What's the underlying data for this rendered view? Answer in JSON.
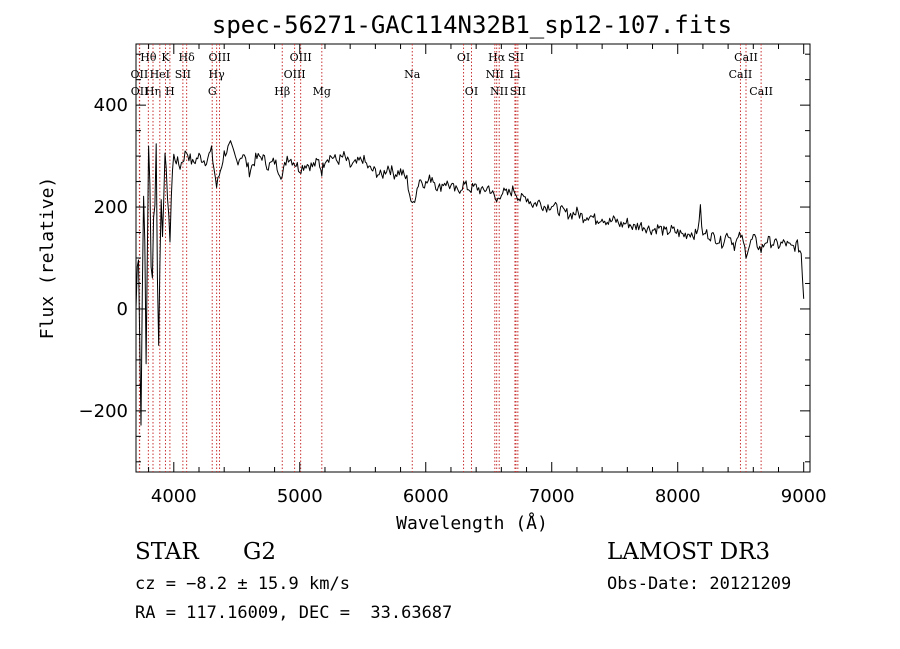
{
  "chart_data": {
    "type": "line",
    "title": "spec-56271-GAC114N32B1_sp12-107.fits",
    "xlabel": "Wavelength (Å)",
    "ylabel": "Flux (relative)",
    "xlim": [
      3700,
      9050
    ],
    "ylim": [
      -320,
      520
    ],
    "xticks": [
      4000,
      5000,
      6000,
      7000,
      8000,
      9000
    ],
    "yticks": [
      -200,
      0,
      200,
      400
    ],
    "xtick_labels": [
      "4000",
      "5000",
      "6000",
      "7000",
      "8000",
      "9000"
    ],
    "ytick_labels": [
      "−200",
      "0",
      "200",
      "400"
    ],
    "series": [
      {
        "name": "flux",
        "x": [
          3700,
          3720,
          3740,
          3760,
          3780,
          3800,
          3820,
          3840,
          3860,
          3880,
          3900,
          3920,
          3940,
          3960,
          3980,
          4000,
          4050,
          4100,
          4150,
          4200,
          4250,
          4300,
          4340,
          4400,
          4450,
          4500,
          4550,
          4600,
          4650,
          4700,
          4750,
          4800,
          4861,
          4900,
          4950,
          5000,
          5050,
          5100,
          5150,
          5175,
          5200,
          5250,
          5300,
          5350,
          5400,
          5450,
          5500,
          5550,
          5600,
          5650,
          5700,
          5750,
          5800,
          5850,
          5893,
          5950,
          6000,
          6050,
          6100,
          6150,
          6200,
          6250,
          6300,
          6350,
          6400,
          6450,
          6500,
          6563,
          6600,
          6650,
          6700,
          6750,
          6800,
          6850,
          6900,
          6950,
          7000,
          7050,
          7100,
          7150,
          7200,
          7250,
          7300,
          7350,
          7400,
          7450,
          7500,
          7550,
          7600,
          7650,
          7700,
          7750,
          7800,
          7850,
          7900,
          7950,
          8000,
          8050,
          8100,
          8150,
          8180,
          8200,
          8220,
          8250,
          8300,
          8350,
          8400,
          8450,
          8500,
          8542,
          8600,
          8662,
          8700,
          8750,
          8800,
          8850,
          8900,
          8950,
          8980,
          9000
        ],
        "values": [
          0,
          150,
          -220,
          280,
          -120,
          350,
          60,
          180,
          300,
          -80,
          260,
          150,
          330,
          120,
          230,
          300,
          280,
          310,
          285,
          300,
          290,
          310,
          240,
          305,
          320,
          290,
          305,
          270,
          295,
          300,
          280,
          290,
          260,
          300,
          290,
          275,
          285,
          280,
          290,
          270,
          295,
          300,
          290,
          300,
          280,
          285,
          295,
          275,
          270,
          260,
          280,
          265,
          270,
          255,
          200,
          255,
          245,
          260,
          235,
          250,
          240,
          230,
          245,
          235,
          240,
          230,
          240,
          210,
          230,
          225,
          235,
          215,
          220,
          205,
          210,
          200,
          205,
          195,
          190,
          185,
          190,
          180,
          185,
          175,
          180,
          170,
          175,
          165,
          170,
          160,
          165,
          160,
          155,
          160,
          150,
          155,
          150,
          145,
          150,
          145,
          195,
          140,
          150,
          145,
          140,
          130,
          150,
          125,
          145,
          110,
          140,
          115,
          135,
          130,
          125,
          130,
          120,
          125,
          110,
          20
        ]
      }
    ],
    "lines": [
      {
        "label": "Hθ",
        "x": 3798,
        "row": 0
      },
      {
        "label": "OII",
        "x": 3727,
        "row": 1
      },
      {
        "label": "OII",
        "x": 3729,
        "row": 2
      },
      {
        "label": "Hη",
        "x": 3835,
        "row": 2
      },
      {
        "label": "HeI",
        "x": 3889,
        "row": 1
      },
      {
        "label": "K",
        "x": 3934,
        "row": 0
      },
      {
        "label": "H",
        "x": 3969,
        "row": 2
      },
      {
        "label": "Hδ",
        "x": 4102,
        "row": 0
      },
      {
        "label": "SII",
        "x": 4072,
        "row": 1
      },
      {
        "label": "OIII",
        "x": 4363,
        "row": 0
      },
      {
        "label": "Hγ",
        "x": 4340,
        "row": 1
      },
      {
        "label": "G",
        "x": 4305,
        "row": 2
      },
      {
        "label": "Hβ",
        "x": 4861,
        "row": 2
      },
      {
        "label": "OIII",
        "x": 5007,
        "row": 0
      },
      {
        "label": "OIII",
        "x": 4959,
        "row": 1
      },
      {
        "label": "Mg",
        "x": 5175,
        "row": 2
      },
      {
        "label": "Na",
        "x": 5893,
        "row": 1
      },
      {
        "label": "OI",
        "x": 6300,
        "row": 0
      },
      {
        "label": "OI",
        "x": 6363,
        "row": 2
      },
      {
        "label": "Hα",
        "x": 6563,
        "row": 0
      },
      {
        "label": "NII",
        "x": 6548,
        "row": 1
      },
      {
        "label": "NII",
        "x": 6583,
        "row": 2
      },
      {
        "label": "SII",
        "x": 6716,
        "row": 0
      },
      {
        "label": "Li",
        "x": 6708,
        "row": 1
      },
      {
        "label": "SII",
        "x": 6731,
        "row": 2
      },
      {
        "label": "CaII",
        "x": 8542,
        "row": 0
      },
      {
        "label": "CaII",
        "x": 8498,
        "row": 1
      },
      {
        "label": "CaII",
        "x": 8662,
        "row": 2
      }
    ]
  },
  "info": {
    "class": "STAR",
    "subclass": "G2",
    "cz": "cz = −8.2 ± 15.9 km/s",
    "radec": "RA = 117.16009, DEC =  33.63687",
    "survey": "LAMOST DR3",
    "obsdate": "Obs-Date: 20121209"
  },
  "colors": {
    "line_marker": "#c83232",
    "spectrum": "#000000",
    "background": "#ffffff"
  }
}
